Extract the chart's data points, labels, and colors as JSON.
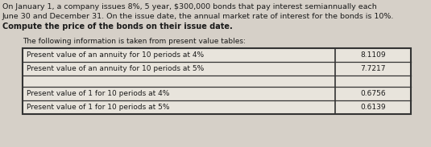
{
  "header_line1": "On January 1, a company issues 8%, 5 year, $300,000 bonds that pay interest semiannually each",
  "header_line2": "June 30 and December 31. On the issue date, the annual market rate of interest for the bonds is 10%.",
  "header_line3": "Compute the price of the bonds on their issue date.",
  "sub_header": "The following information is taken from present value tables:",
  "table_rows": [
    {
      "label": "Present value of an annuity for 10 periods at 4%",
      "value": "8.1109",
      "gap_after": false
    },
    {
      "label": "Present value of an annuity for 10 periods at 5%",
      "value": "7.7217",
      "gap_after": true
    },
    {
      "label": "Present value of 1 for 10 periods at 4%",
      "value": "0.6756",
      "gap_after": false
    },
    {
      "label": "Present value of 1 for 10 periods at 5%",
      "value": "0.6139",
      "gap_after": false
    }
  ],
  "bg_color": "#d6d0c8",
  "table_bg": "#e8e4dc",
  "text_color": "#1a1a1a",
  "border_color": "#333333",
  "font_size_header": 6.8,
  "font_size_bold": 7.0,
  "font_size_table": 6.5,
  "font_size_sub": 6.5
}
